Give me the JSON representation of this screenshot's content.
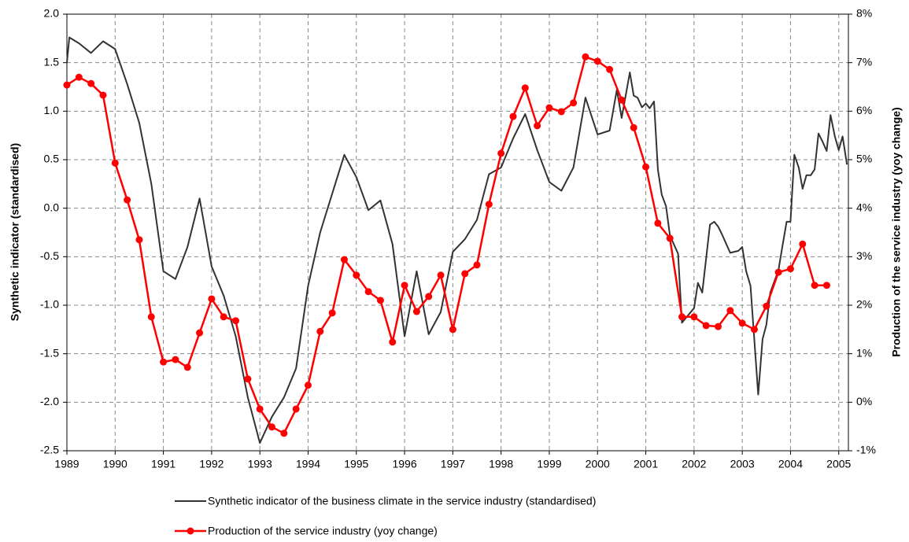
{
  "chart_data": {
    "type": "line",
    "y_label": "Synthetic indicator (standardised)",
    "y2_label": "Production of the service industry (yoy change)",
    "xlim": [
      1989,
      2005.2
    ],
    "xticks": [
      1989,
      1990,
      1991,
      1992,
      1993,
      1994,
      1995,
      1996,
      1997,
      1998,
      1999,
      2000,
      2001,
      2002,
      2003,
      2004,
      2005
    ],
    "ylim": [
      -2.5,
      2
    ],
    "yticks": [
      {
        "value": 2,
        "label": "2.0"
      },
      1.5,
      {
        "value": 1,
        "label": "1.0"
      },
      0.5,
      {
        "value": 0,
        "label": "0.0"
      },
      -0.5,
      {
        "value": -1,
        "label": "-1.0"
      },
      -1.5,
      {
        "value": -2,
        "label": "-2.0"
      },
      -2.5
    ],
    "y2lim": [
      -1,
      8
    ],
    "y2ticks": [
      {
        "value": 8,
        "label": "8%"
      },
      {
        "value": 7,
        "label": "7%"
      },
      {
        "value": 6,
        "label": "6%"
      },
      {
        "value": 5,
        "label": "5%"
      },
      {
        "value": 4,
        "label": "4%"
      },
      {
        "value": 3,
        "label": "3%"
      },
      {
        "value": 2,
        "label": "2%"
      },
      {
        "value": 1,
        "label": "1%"
      },
      {
        "value": 0,
        "label": "0%"
      },
      {
        "value": -1,
        "label": "-1%"
      }
    ],
    "grid": true,
    "legend": "bottom",
    "series": [
      {
        "name": "Synthetic indicator of the business climate in the service industry (standardised)",
        "color": "#333333",
        "markers": false,
        "x": [
          1989,
          1989.05,
          1989.25,
          1989.5,
          1989.75,
          1990,
          1990.25,
          1990.5,
          1990.75,
          1991,
          1991.25,
          1991.5,
          1991.75,
          1992,
          1992.25,
          1992.5,
          1992.75,
          1993,
          1993.25,
          1993.5,
          1993.75,
          1994,
          1994.25,
          1994.5,
          1994.75,
          1995,
          1995.25,
          1995.5,
          1995.75,
          1996,
          1996.25,
          1996.5,
          1996.75,
          1997,
          1997.25,
          1997.5,
          1997.75,
          1998,
          1998.25,
          1998.5,
          1998.75,
          1999,
          1999.25,
          1999.5,
          1999.75,
          2000,
          2000.25,
          2000.4,
          2000.5,
          2000.67,
          2000.75,
          2000.83,
          2000.92,
          2001,
          2001.08,
          2001.17,
          2001.25,
          2001.33,
          2001.42,
          2001.5,
          2001.67,
          2001.75,
          2002,
          2002.08,
          2002.17,
          2002.33,
          2002.42,
          2002.5,
          2002.58,
          2002.75,
          2002.92,
          2003,
          2003.08,
          2003.17,
          2003.33,
          2003.42,
          2003.5,
          2003.58,
          2003.75,
          2003.83,
          2003.92,
          2004,
          2004.08,
          2004.17,
          2004.25,
          2004.33,
          2004.42,
          2004.5,
          2004.58,
          2004.67,
          2004.75,
          2004.83,
          2004.92,
          2005,
          2005.08,
          2005.17
        ],
        "values": [
          1.5,
          1.76,
          1.7,
          1.6,
          1.72,
          1.64,
          1.28,
          0.88,
          0.25,
          -0.65,
          -0.73,
          -0.4,
          0.1,
          -0.6,
          -0.9,
          -1.32,
          -1.95,
          -2.42,
          -2.15,
          -1.95,
          -1.65,
          -0.8,
          -0.25,
          0.15,
          0.55,
          0.32,
          -0.02,
          0.08,
          -0.37,
          -1.32,
          -0.65,
          -1.3,
          -1.07,
          -0.45,
          -0.32,
          -0.12,
          0.35,
          0.42,
          0.72,
          0.97,
          0.6,
          0.27,
          0.18,
          0.42,
          1.14,
          0.76,
          0.8,
          1.22,
          0.93,
          1.4,
          1.16,
          1.14,
          1.04,
          1.08,
          1.03,
          1.1,
          0.4,
          0.14,
          0.02,
          -0.28,
          -0.47,
          -1.18,
          -1.03,
          -0.77,
          -0.87,
          -0.17,
          -0.14,
          -0.19,
          -0.27,
          -0.46,
          -0.44,
          -0.4,
          -0.65,
          -0.8,
          -1.92,
          -1.35,
          -1.2,
          -0.87,
          -0.64,
          -0.4,
          -0.14,
          -0.14,
          0.55,
          0.42,
          0.2,
          0.34,
          0.34,
          0.4,
          0.77,
          0.68,
          0.59,
          0.96,
          0.74,
          0.6,
          0.74,
          0.45
        ]
      },
      {
        "name": "Production of the service industry (yoy change)",
        "color": "#ff0000",
        "markers": true,
        "axis": "y2",
        "x": [
          1989,
          1989.25,
          1989.5,
          1989.75,
          1990,
          1990.25,
          1990.5,
          1990.75,
          1991,
          1991.25,
          1991.5,
          1991.75,
          1992,
          1992.25,
          1992.5,
          1992.75,
          1993,
          1993.25,
          1993.5,
          1993.75,
          1994,
          1994.25,
          1994.5,
          1994.75,
          1995,
          1995.25,
          1995.5,
          1995.75,
          1996,
          1996.25,
          1996.5,
          1996.75,
          1997,
          1997.25,
          1997.5,
          1997.75,
          1998,
          1998.25,
          1998.5,
          1998.75,
          1999,
          1999.25,
          1999.5,
          1999.75,
          2000,
          2000.25,
          2000.5,
          2000.75,
          2001,
          2001.25,
          2001.5,
          2001.75,
          2002,
          2002.25,
          2002.5,
          2002.75,
          2003,
          2003.25,
          2003.5,
          2003.75,
          2004,
          2004.25,
          2004.5,
          2004.75
        ],
        "values": [
          6.54,
          6.7,
          6.57,
          6.33,
          4.93,
          4.17,
          3.35,
          1.76,
          0.83,
          0.88,
          0.72,
          1.43,
          2.13,
          1.76,
          1.68,
          0.48,
          -0.14,
          -0.51,
          -0.64,
          -0.14,
          0.35,
          1.46,
          1.84,
          2.94,
          2.62,
          2.28,
          2.1,
          1.24,
          2.41,
          1.87,
          2.18,
          2.62,
          1.5,
          2.65,
          2.83,
          4.08,
          5.13,
          5.89,
          6.48,
          5.7,
          6.07,
          5.99,
          6.17,
          7.12,
          7.03,
          6.86,
          6.23,
          5.66,
          4.85,
          3.69,
          3.38,
          1.76,
          1.76,
          1.58,
          1.56,
          1.89,
          1.63,
          1.5,
          1.98,
          2.68,
          2.75,
          3.26,
          2.41,
          2.41
        ]
      }
    ]
  }
}
